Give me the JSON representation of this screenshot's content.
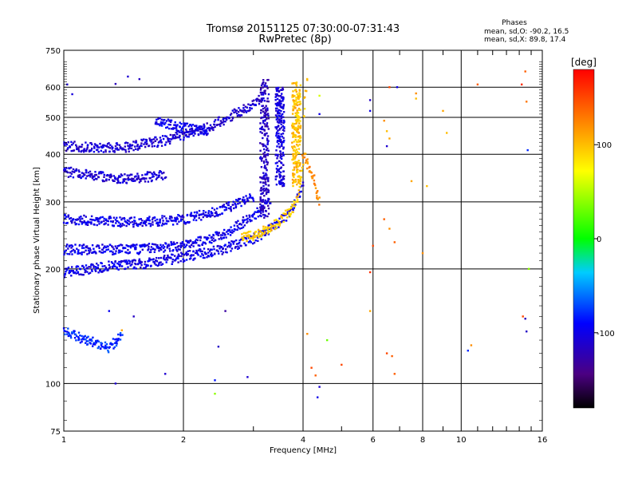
{
  "chart_data": {
    "type": "scatter",
    "title": "Tromsø 20151125 07:30:00-07:31:43",
    "subtitle": "RwPretec (8p)",
    "xlabel": "Frequency [MHz]",
    "ylabel": "Stationary phase Virtual Height [km]",
    "x_scale": "log",
    "y_scale": "log",
    "xlim": [
      1,
      16
    ],
    "ylim": [
      75,
      750
    ],
    "xticks": [
      1,
      2,
      4,
      6,
      8,
      10,
      16
    ],
    "xtick_labels": [
      "1",
      "2",
      "4",
      "6",
      "8",
      "10",
      "16"
    ],
    "x_minor_ticks": [
      3,
      5,
      7,
      9,
      11,
      12,
      13,
      14,
      15
    ],
    "yticks": [
      75,
      100,
      200,
      300,
      400,
      500,
      600,
      750
    ],
    "ytick_labels": [
      "75",
      "100",
      "200",
      "300",
      "400",
      "500",
      "600",
      "750"
    ],
    "grid": true,
    "legend": {
      "title": "Phases",
      "lines": [
        "mean, sd,O: -90.2, 16.5",
        "mean, sd,X:  89.8, 17.4"
      ],
      "placement": "top-right"
    },
    "colorbar": {
      "label": "[deg]",
      "range": [
        -180,
        180
      ],
      "ticks": [
        -100,
        0,
        100
      ],
      "tick_labels": [
        "-100",
        "0",
        "100"
      ],
      "colormap": "rainbow"
    },
    "traces": [
      {
        "x": [
          1.0,
          1.3,
          1.7,
          2.0,
          2.5,
          3.0,
          3.5,
          3.8,
          4.0
        ],
        "y": [
          196,
          203,
          208,
          215,
          225,
          240,
          265,
          290,
          330
        ],
        "phase": -100
      },
      {
        "x": [
          1.0,
          1.5,
          2.0,
          2.5,
          3.0,
          3.3
        ],
        "y": [
          225,
          225,
          230,
          245,
          275,
          300
        ],
        "phase": -100
      },
      {
        "x": [
          1.0,
          1.5,
          2.0,
          2.5,
          3.0
        ],
        "y": [
          270,
          265,
          270,
          285,
          310
        ],
        "phase": -100
      },
      {
        "x": [
          1.0,
          1.4,
          1.8
        ],
        "y": [
          360,
          345,
          352
        ],
        "phase": -110
      },
      {
        "x": [
          1.0,
          1.4,
          1.8,
          2.0,
          2.3,
          2.6,
          3.0,
          3.2
        ],
        "y": [
          420,
          415,
          435,
          450,
          470,
          500,
          540,
          570
        ],
        "phase": -110
      },
      {
        "x": [
          1.7,
          2.0,
          2.3
        ],
        "y": [
          490,
          470,
          460
        ],
        "phase": -100
      },
      {
        "x": [
          2.8,
          3.0,
          3.2,
          3.4,
          3.6,
          3.8,
          3.9,
          4.0,
          4.0,
          4.1
        ],
        "y": [
          240,
          245,
          252,
          262,
          275,
          290,
          320,
          380,
          500,
          640
        ],
        "phase": 95
      },
      {
        "x": [
          4.0,
          4.1,
          4.2,
          4.3,
          4.4
        ],
        "y": [
          400,
          380,
          360,
          330,
          300
        ],
        "phase": 120
      },
      {
        "x": [
          1.0,
          1.1,
          1.2,
          1.3,
          1.4
        ],
        "y": [
          137,
          132,
          128,
          124,
          134
        ],
        "phase": -80
      }
    ],
    "columns": [
      {
        "x": 3.2,
        "y_range": [
          270,
          630
        ],
        "phase": -115
      },
      {
        "x": 3.5,
        "y_range": [
          330,
          600
        ],
        "phase": -105
      },
      {
        "x": 3.85,
        "y_range": [
          330,
          620
        ],
        "phase": 100
      }
    ],
    "points": [
      {
        "x": 1.02,
        "y": 610,
        "phase": -110
      },
      {
        "x": 1.05,
        "y": 575,
        "phase": -105
      },
      {
        "x": 1.35,
        "y": 612,
        "phase": -120
      },
      {
        "x": 1.45,
        "y": 640,
        "phase": -110
      },
      {
        "x": 1.55,
        "y": 630,
        "phase": -115
      },
      {
        "x": 1.5,
        "y": 150,
        "phase": -115
      },
      {
        "x": 1.3,
        "y": 155,
        "phase": -95
      },
      {
        "x": 1.4,
        "y": 138,
        "phase": 110
      },
      {
        "x": 1.35,
        "y": 100,
        "phase": -110
      },
      {
        "x": 1.8,
        "y": 106,
        "phase": -110
      },
      {
        "x": 2.45,
        "y": 125,
        "phase": -115
      },
      {
        "x": 2.4,
        "y": 102,
        "phase": -85
      },
      {
        "x": 2.4,
        "y": 94,
        "phase": 40
      },
      {
        "x": 2.55,
        "y": 155,
        "phase": -130
      },
      {
        "x": 2.9,
        "y": 104,
        "phase": -110
      },
      {
        "x": 4.4,
        "y": 570,
        "phase": 60
      },
      {
        "x": 4.4,
        "y": 510,
        "phase": -100
      },
      {
        "x": 4.1,
        "y": 135,
        "phase": 120
      },
      {
        "x": 4.2,
        "y": 110,
        "phase": 150
      },
      {
        "x": 4.3,
        "y": 105,
        "phase": 140
      },
      {
        "x": 4.4,
        "y": 98,
        "phase": -110
      },
      {
        "x": 4.35,
        "y": 92,
        "phase": -100
      },
      {
        "x": 4.6,
        "y": 130,
        "phase": 30
      },
      {
        "x": 5.0,
        "y": 112,
        "phase": 150
      },
      {
        "x": 5.9,
        "y": 555,
        "phase": -115
      },
      {
        "x": 5.9,
        "y": 520,
        "phase": -100
      },
      {
        "x": 5.9,
        "y": 196,
        "phase": 160
      },
      {
        "x": 5.9,
        "y": 155,
        "phase": 110
      },
      {
        "x": 6.0,
        "y": 230,
        "phase": 150
      },
      {
        "x": 6.4,
        "y": 490,
        "phase": 120
      },
      {
        "x": 6.5,
        "y": 460,
        "phase": 100
      },
      {
        "x": 6.6,
        "y": 440,
        "phase": 110
      },
      {
        "x": 6.5,
        "y": 420,
        "phase": -110
      },
      {
        "x": 6.6,
        "y": 600,
        "phase": 150
      },
      {
        "x": 6.9,
        "y": 600,
        "phase": -100
      },
      {
        "x": 6.8,
        "y": 235,
        "phase": 140
      },
      {
        "x": 6.6,
        "y": 255,
        "phase": 120
      },
      {
        "x": 6.4,
        "y": 270,
        "phase": 140
      },
      {
        "x": 6.5,
        "y": 120,
        "phase": 150
      },
      {
        "x": 6.7,
        "y": 118,
        "phase": 140
      },
      {
        "x": 6.8,
        "y": 106,
        "phase": 140
      },
      {
        "x": 7.5,
        "y": 340,
        "phase": 110
      },
      {
        "x": 7.7,
        "y": 578,
        "phase": 120
      },
      {
        "x": 7.7,
        "y": 560,
        "phase": 100
      },
      {
        "x": 8.0,
        "y": 220,
        "phase": 120
      },
      {
        "x": 8.2,
        "y": 330,
        "phase": 100
      },
      {
        "x": 9.0,
        "y": 520,
        "phase": 110
      },
      {
        "x": 9.2,
        "y": 455,
        "phase": 100
      },
      {
        "x": 10.6,
        "y": 126,
        "phase": 120
      },
      {
        "x": 10.4,
        "y": 122,
        "phase": -80
      },
      {
        "x": 11.0,
        "y": 610,
        "phase": 140
      },
      {
        "x": 14.2,
        "y": 610,
        "phase": 160
      },
      {
        "x": 14.5,
        "y": 660,
        "phase": 140
      },
      {
        "x": 14.6,
        "y": 550,
        "phase": 130
      },
      {
        "x": 14.7,
        "y": 410,
        "phase": -80
      },
      {
        "x": 14.8,
        "y": 200,
        "phase": 40
      },
      {
        "x": 14.3,
        "y": 150,
        "phase": 150
      },
      {
        "x": 14.5,
        "y": 148,
        "phase": -120
      },
      {
        "x": 14.6,
        "y": 137,
        "phase": -115
      }
    ]
  }
}
